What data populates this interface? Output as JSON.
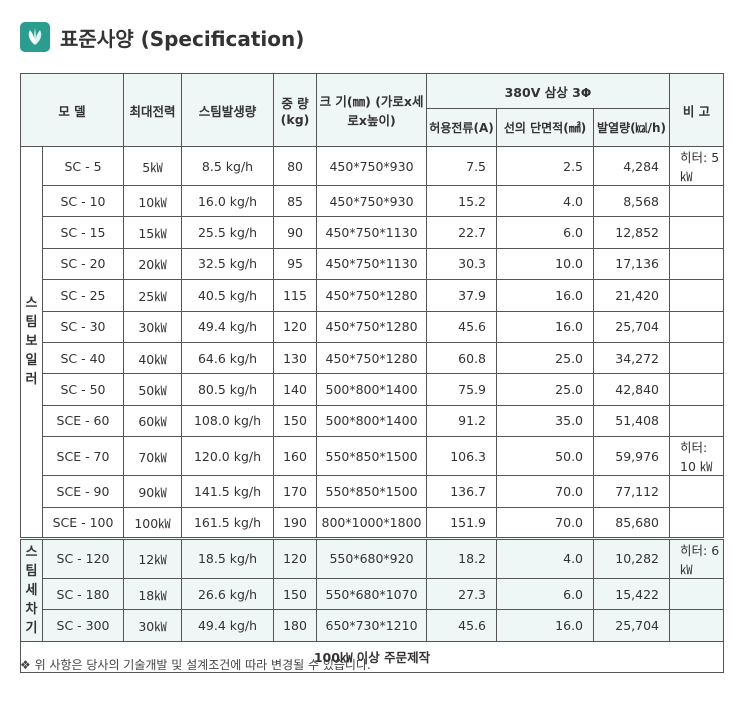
{
  "title": "표준사양 (Specification)",
  "icon": "leaf-logo-icon",
  "headers": {
    "model": "모 델",
    "max_power": "최대전력",
    "steam": "스팀발생량",
    "weight": "중 량 (kg)",
    "size": "크 기(㎜) (가로x세로x높이)",
    "power_group": "380V 삼상 3Φ",
    "current": "허용전류(A)",
    "wire": "선의 단면적(㎟)",
    "heat": "발열량(㎉/h)",
    "remark": "비 고"
  },
  "groups": {
    "boiler": [
      "스",
      "팀",
      "보",
      "일",
      "러"
    ],
    "washer": [
      "스",
      "팀",
      "세",
      "차",
      "기"
    ]
  },
  "boiler_rows": [
    {
      "model": "SC - 5",
      "power": "5㎾",
      "steam": "8.5 kg/h",
      "weight": "80",
      "size": "450*750*930",
      "current": "7.5",
      "wire": "2.5",
      "heat": "4,284",
      "remark": "히터: 5 ㎾"
    },
    {
      "model": "SC - 10",
      "power": "10㎾",
      "steam": "16.0 kg/h",
      "weight": "85",
      "size": "450*750*930",
      "current": "15.2",
      "wire": "4.0",
      "heat": "8,568",
      "remark": ""
    },
    {
      "model": "SC - 15",
      "power": "15㎾",
      "steam": "25.5 kg/h",
      "weight": "90",
      "size": "450*750*1130",
      "current": "22.7",
      "wire": "6.0",
      "heat": "12,852",
      "remark": ""
    },
    {
      "model": "SC - 20",
      "power": "20㎾",
      "steam": "32.5 kg/h",
      "weight": "95",
      "size": "450*750*1130",
      "current": "30.3",
      "wire": "10.0",
      "heat": "17,136",
      "remark": ""
    },
    {
      "model": "SC - 25",
      "power": "25㎾",
      "steam": "40.5 kg/h",
      "weight": "115",
      "size": "450*750*1280",
      "current": "37.9",
      "wire": "16.0",
      "heat": "21,420",
      "remark": ""
    },
    {
      "model": "SC - 30",
      "power": "30㎾",
      "steam": "49.4 kg/h",
      "weight": "120",
      "size": "450*750*1280",
      "current": "45.6",
      "wire": "16.0",
      "heat": "25,704",
      "remark": ""
    },
    {
      "model": "SC - 40",
      "power": "40㎾",
      "steam": "64.6 kg/h",
      "weight": "130",
      "size": "450*750*1280",
      "current": "60.8",
      "wire": "25.0",
      "heat": "34,272",
      "remark": ""
    },
    {
      "model": "SC - 50",
      "power": "50㎾",
      "steam": "80.5 kg/h",
      "weight": "140",
      "size": "500*800*1400",
      "current": "75.9",
      "wire": "25.0",
      "heat": "42,840",
      "remark": ""
    },
    {
      "model": "SCE - 60",
      "power": "60㎾",
      "steam": "108.0 kg/h",
      "weight": "150",
      "size": "500*800*1400",
      "current": "91.2",
      "wire": "35.0",
      "heat": "51,408",
      "remark": ""
    },
    {
      "model": "SCE - 70",
      "power": "70㎾",
      "steam": "120.0 kg/h",
      "weight": "160",
      "size": "550*850*1500",
      "current": "106.3",
      "wire": "50.0",
      "heat": "59,976",
      "remark": "히터: 10 ㎾"
    },
    {
      "model": "SCE - 90",
      "power": "90㎾",
      "steam": "141.5 kg/h",
      "weight": "170",
      "size": "550*850*1500",
      "current": "136.7",
      "wire": "70.0",
      "heat": "77,112",
      "remark": ""
    },
    {
      "model": "SCE - 100",
      "power": "100㎾",
      "steam": "161.5 kg/h",
      "weight": "190",
      "size": "800*1000*1800",
      "current": "151.9",
      "wire": "70.0",
      "heat": "85,680",
      "remark": ""
    }
  ],
  "washer_rows": [
    {
      "model": "SC - 120",
      "power": "12㎾",
      "steam": "18.5 kg/h",
      "weight": "120",
      "size": "550*680*920",
      "current": "18.2",
      "wire": "4.0",
      "heat": "10,282",
      "remark": "히터: 6 ㎾"
    },
    {
      "model": "SC - 180",
      "power": "18㎾",
      "steam": "26.6 kg/h",
      "weight": "150",
      "size": "550*680*1070",
      "current": "27.3",
      "wire": "6.0",
      "heat": "15,422",
      "remark": ""
    },
    {
      "model": "SC - 300",
      "power": "30㎾",
      "steam": "49.4 kg/h",
      "weight": "180",
      "size": "650*730*1210",
      "current": "45.6",
      "wire": "16.0",
      "heat": "25,704",
      "remark": ""
    }
  ],
  "footer": "100㎾ 이상 주문제작",
  "note": "❖ 위 사항은 당사의 기술개발 및 설계조건에 따라 변경될 수 있습니다."
}
